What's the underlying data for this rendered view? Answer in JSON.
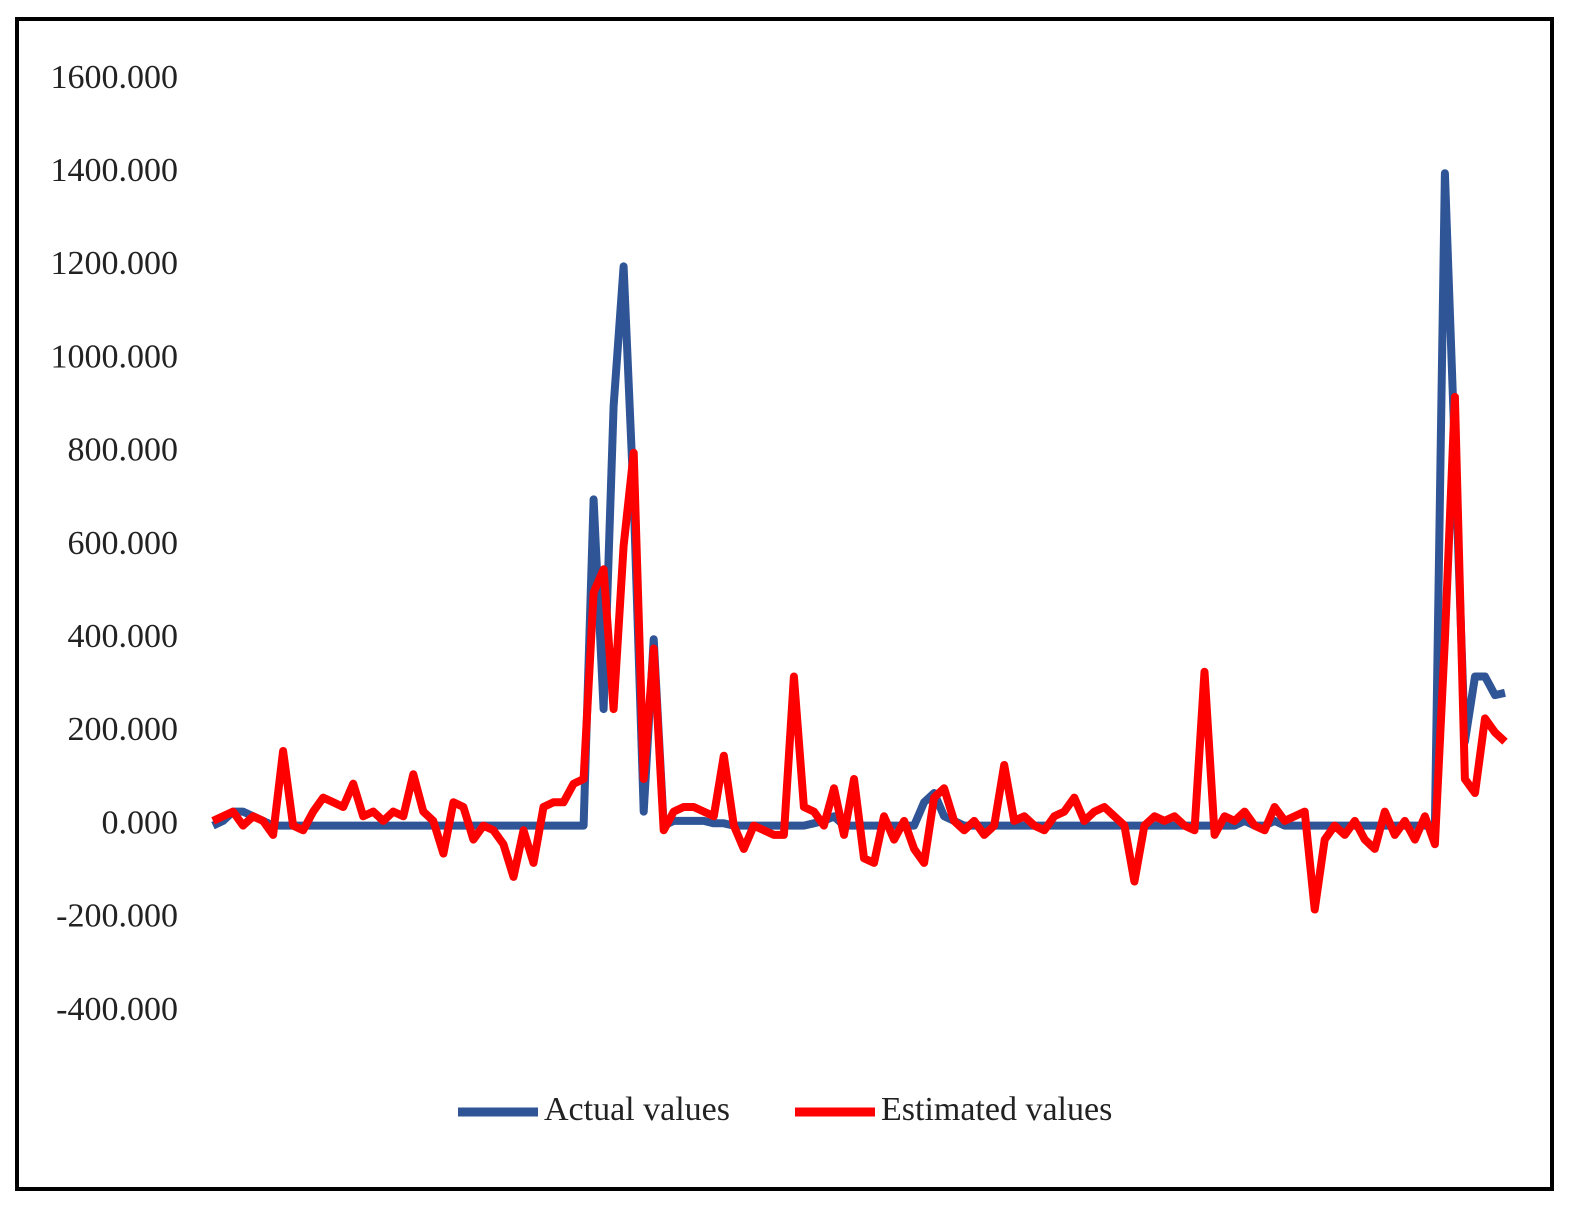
{
  "chart_data": {
    "type": "line",
    "ylim": [
      -400,
      1600
    ],
    "yticks": [
      {
        "value": -400,
        "label": "-400.000"
      },
      {
        "value": -200,
        "label": "-200.000"
      },
      {
        "value": 0,
        "label": "0.000"
      },
      {
        "value": 200,
        "label": "200.000"
      },
      {
        "value": 400,
        "label": "400.000"
      },
      {
        "value": 600,
        "label": "600.000"
      },
      {
        "value": 800,
        "label": "800.000"
      },
      {
        "value": 1000,
        "label": "1000.000"
      },
      {
        "value": 1200,
        "label": "1200.000"
      },
      {
        "value": 1400,
        "label": "1400.000"
      },
      {
        "value": 1600,
        "label": "1600.000"
      }
    ],
    "legend": "bottom",
    "series": [
      {
        "name": "Actual values",
        "color": "#2f5597",
        "values": [
          0,
          10,
          30,
          30,
          20,
          10,
          0,
          0,
          0,
          0,
          0,
          0,
          0,
          0,
          0,
          0,
          0,
          0,
          0,
          0,
          0,
          0,
          0,
          0,
          0,
          0,
          0,
          0,
          0,
          0,
          0,
          0,
          0,
          0,
          0,
          0,
          0,
          0,
          700,
          250,
          900,
          1200,
          700,
          30,
          400,
          0,
          10,
          10,
          10,
          10,
          5,
          5,
          0,
          0,
          0,
          0,
          0,
          0,
          0,
          0,
          5,
          10,
          20,
          0,
          0,
          0,
          0,
          0,
          0,
          0,
          0,
          50,
          70,
          20,
          10,
          0,
          0,
          0,
          0,
          0,
          0,
          0,
          0,
          0,
          0,
          0,
          0,
          0,
          0,
          0,
          0,
          0,
          0,
          0,
          0,
          0,
          0,
          0,
          0,
          0,
          0,
          0,
          0,
          10,
          0,
          0,
          10,
          0,
          0,
          0,
          0,
          0,
          0,
          0,
          0,
          0,
          0,
          0,
          0,
          0,
          0,
          0,
          0,
          1400,
          800,
          180,
          320,
          320,
          280,
          285
        ]
      },
      {
        "name": "Estimated values",
        "color": "#ff0000",
        "values": [
          10,
          20,
          30,
          0,
          20,
          10,
          -20,
          160,
          0,
          -10,
          30,
          60,
          50,
          40,
          90,
          20,
          30,
          10,
          30,
          20,
          110,
          30,
          10,
          -60,
          50,
          40,
          -30,
          0,
          -10,
          -40,
          -110,
          -10,
          -80,
          40,
          50,
          50,
          90,
          100,
          500,
          550,
          250,
          600,
          800,
          100,
          380,
          -10,
          30,
          40,
          40,
          30,
          20,
          150,
          0,
          -50,
          0,
          -10,
          -20,
          -20,
          320,
          40,
          30,
          0,
          80,
          -20,
          100,
          -70,
          -80,
          20,
          -30,
          10,
          -50,
          -80,
          60,
          80,
          10,
          -10,
          10,
          -20,
          0,
          130,
          10,
          20,
          0,
          -10,
          20,
          30,
          60,
          10,
          30,
          40,
          20,
          0,
          -120,
          0,
          20,
          10,
          20,
          0,
          -10,
          330,
          -20,
          20,
          10,
          30,
          0,
          -10,
          40,
          10,
          20,
          30,
          -180,
          -30,
          0,
          -20,
          10,
          -30,
          -50,
          30,
          -20,
          10,
          -30,
          20,
          -40,
          400,
          920,
          100,
          70,
          230,
          200,
          180
        ]
      }
    ]
  }
}
